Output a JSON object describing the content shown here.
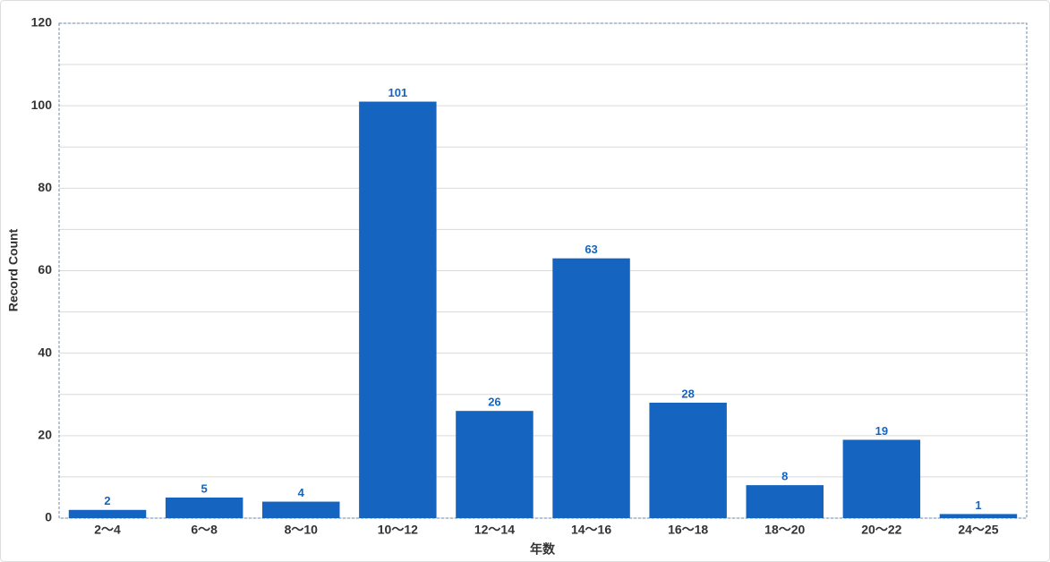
{
  "chart_data": {
    "type": "bar",
    "x_label": "年数",
    "y_label": "Record Count",
    "categories": [
      "2～4",
      "6～8",
      "8～10",
      "10～12",
      "12～14",
      "14～16",
      "16～18",
      "18～20",
      "20～22",
      "24～25"
    ],
    "values": [
      2,
      5,
      4,
      101,
      26,
      63,
      28,
      8,
      19,
      1
    ],
    "color": "#1565c0",
    "ylim": [
      0,
      120
    ],
    "yticks": [
      0,
      20,
      40,
      60,
      80,
      100,
      120
    ],
    "minor_yticks": [
      10,
      30,
      50,
      70,
      90,
      110
    ],
    "grid": true
  }
}
